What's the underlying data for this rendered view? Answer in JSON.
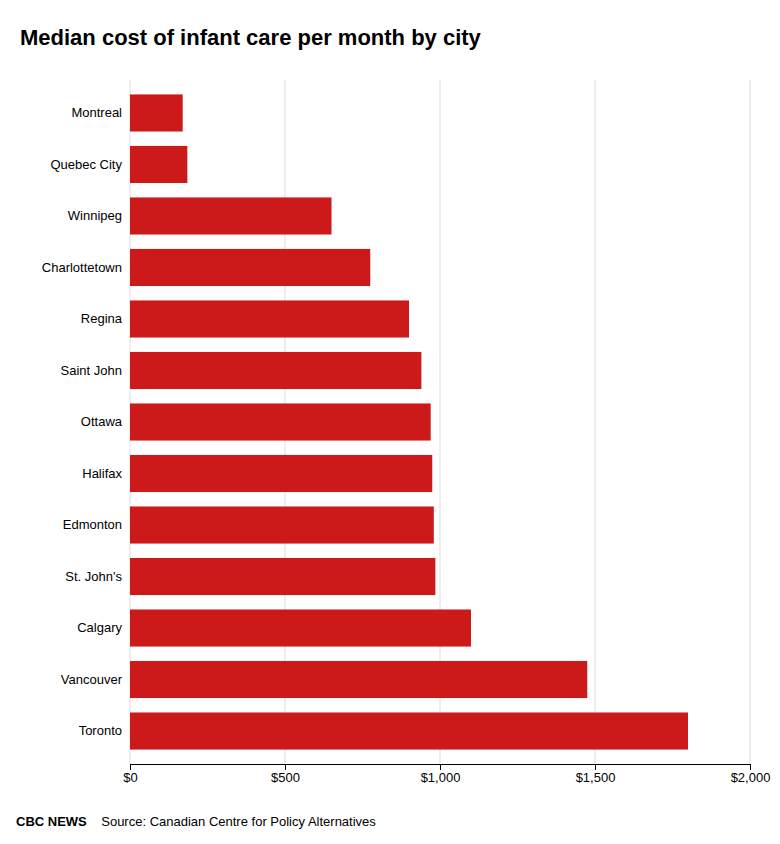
{
  "chart_data": {
    "type": "bar",
    "orientation": "horizontal",
    "title": "Median cost of infant care per month by city",
    "categories": [
      "Montreal",
      "Quebec City",
      "Winnipeg",
      "Charlottetown",
      "Regina",
      "Saint John",
      "Ottawa",
      "Halifax",
      "Edmonton",
      "St. John's",
      "Calgary",
      "Vancouver",
      "Toronto"
    ],
    "values": [
      170,
      185,
      650,
      775,
      900,
      940,
      970,
      975,
      980,
      985,
      1100,
      1475,
      1800
    ],
    "color": "#cc1a1a",
    "xlim": [
      0,
      2000
    ],
    "xticks": [
      {
        "value": 0,
        "label": "$0"
      },
      {
        "value": 500,
        "label": "$500"
      },
      {
        "value": 1000,
        "label": "$1,000"
      },
      {
        "value": 1500,
        "label": "$1,500"
      },
      {
        "value": 2000,
        "label": "$2,000"
      }
    ],
    "grid": true,
    "annotations": [
      "CBC NEWS",
      "    Source: Canadian Centre for Policy Alternatives"
    ]
  }
}
